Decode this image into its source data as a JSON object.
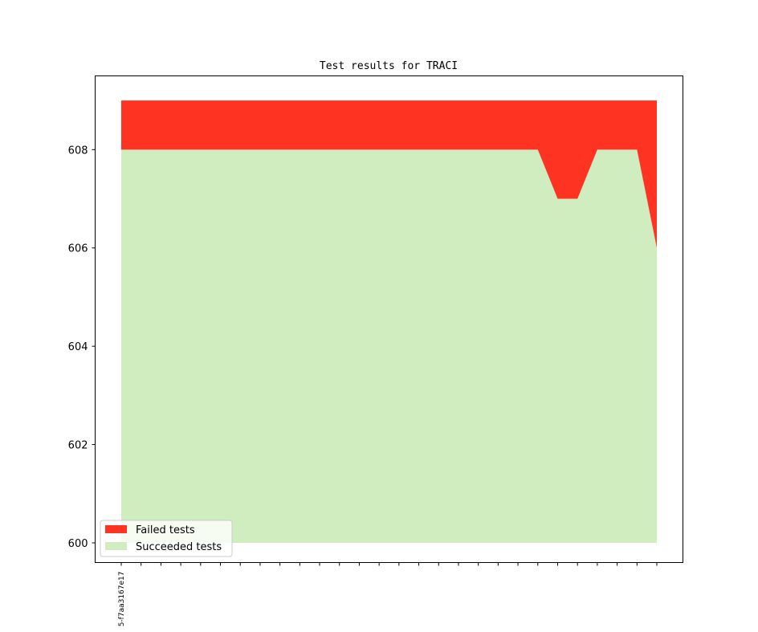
{
  "chart_data": {
    "type": "area",
    "title": "Test results for TRACI",
    "xlabel": "",
    "ylabel": "",
    "ylim": [
      599.6,
      609.5
    ],
    "y_ticks": [
      600,
      602,
      604,
      606,
      608
    ],
    "x_tick_count": 28,
    "x_tick_labels": [
      "5-f7aa3167e17"
    ],
    "series": [
      {
        "name": "Failed tests",
        "color": "#ff3322",
        "values": [
          1,
          1,
          1,
          1,
          1,
          1,
          1,
          1,
          1,
          1,
          1,
          1,
          1,
          1,
          1,
          1,
          1,
          1,
          1,
          1,
          1,
          1,
          2,
          2,
          1,
          1,
          1,
          3
        ]
      },
      {
        "name": "Succeeded tests",
        "color": "#cfedbf",
        "values": [
          608,
          608,
          608,
          608,
          608,
          608,
          608,
          608,
          608,
          608,
          608,
          608,
          608,
          608,
          608,
          608,
          608,
          608,
          608,
          608,
          608,
          608,
          607,
          607,
          608,
          608,
          608,
          606
        ]
      }
    ],
    "stack_base": 600,
    "grid": false,
    "legend": "lower-left"
  }
}
